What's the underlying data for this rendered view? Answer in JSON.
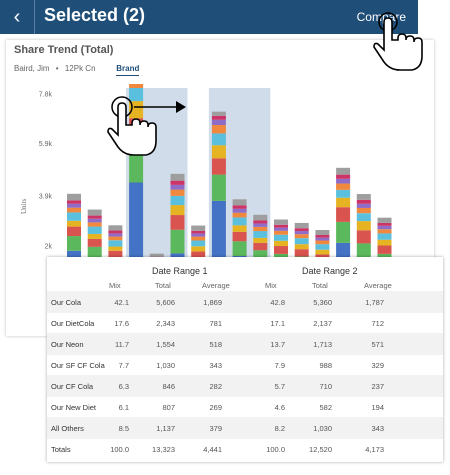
{
  "header": {
    "back_icon": "chevron-left-icon",
    "title": "Selected (2)",
    "compare_label": "Compare"
  },
  "card": {
    "title": "Share Trend (Total)",
    "filters": [
      "Baird, Jim",
      "12Pk Cn"
    ],
    "tab": "Brand"
  },
  "chart_data": {
    "type": "bar",
    "stacked": true,
    "ylabel": "Units",
    "yticks": [
      "2k",
      "3.9k",
      "5.9k",
      "7.8k"
    ],
    "ylim": [
      0,
      8000
    ],
    "highlighted_ranges": [
      "Date Range 1",
      "Date Range 2"
    ],
    "colors": [
      "#4472c4",
      "#5cb85c",
      "#d9534f",
      "#e6b422",
      "#5bc0de",
      "#f0883e",
      "#8e6cc7",
      "#cc3366",
      "#9e9e9e"
    ],
    "bars": [
      [
        1800,
        560,
        360,
        220,
        320,
        180,
        150,
        130,
        250
      ],
      [
        1500,
        450,
        300,
        190,
        280,
        160,
        140,
        120,
        230
      ],
      [
        1150,
        390,
        260,
        160,
        240,
        140,
        120,
        110,
        200
      ],
      [
        4400,
        1500,
        950,
        650,
        500,
        300,
        200,
        150,
        150
      ],
      [
        680,
        240,
        170,
        120,
        140,
        90,
        70,
        60,
        120
      ],
      [
        1700,
        900,
        560,
        380,
        350,
        240,
        180,
        160,
        260
      ],
      [
        1070,
        420,
        280,
        200,
        220,
        150,
        120,
        100,
        200
      ],
      [
        3700,
        1000,
        620,
        500,
        450,
        320,
        200,
        150,
        160
      ],
      [
        1600,
        560,
        360,
        250,
        300,
        180,
        150,
        130,
        230
      ],
      [
        1400,
        420,
        280,
        190,
        260,
        160,
        130,
        120,
        210
      ],
      [
        1200,
        480,
        300,
        200,
        230,
        150,
        120,
        110,
        200
      ],
      [
        1150,
        430,
        280,
        190,
        230,
        150,
        120,
        110,
        200
      ],
      [
        1000,
        400,
        260,
        180,
        210,
        140,
        110,
        100,
        190
      ],
      [
        2100,
        800,
        560,
        360,
        300,
        240,
        180,
        160,
        260
      ],
      [
        1280,
        800,
        500,
        350,
        300,
        200,
        160,
        150,
        220
      ],
      [
        1180,
        500,
        320,
        220,
        240,
        160,
        130,
        110,
        200
      ]
    ]
  },
  "table": {
    "range1": "Date Range 1",
    "range2": "Date Range 2",
    "columns": [
      "Mix",
      "Total",
      "Average",
      "Mix",
      "Total",
      "Average"
    ],
    "rows": [
      {
        "label": "Our Cola",
        "values": [
          "42.1",
          "5,606",
          "1,869",
          "42.8",
          "5,360",
          "1,787"
        ]
      },
      {
        "label": "Our DietCola",
        "values": [
          "17.6",
          "2,343",
          "781",
          "17.1",
          "2,137",
          "712"
        ]
      },
      {
        "label": "Our Neon",
        "values": [
          "11.7",
          "1,554",
          "518",
          "13.7",
          "1,713",
          "571"
        ]
      },
      {
        "label": "Our SF CF Cola",
        "values": [
          "7.7",
          "1,030",
          "343",
          "7.9",
          "988",
          "329"
        ]
      },
      {
        "label": "Our CF Cola",
        "values": [
          "6.3",
          "846",
          "282",
          "5.7",
          "710",
          "237"
        ]
      },
      {
        "label": "Our New Diet",
        "values": [
          "6.1",
          "807",
          "269",
          "4.6",
          "582",
          "194"
        ]
      },
      {
        "label": "All Others",
        "values": [
          "8.5",
          "1,137",
          "379",
          "8.2",
          "1,030",
          "343"
        ]
      },
      {
        "label": "Totals",
        "values": [
          "100.0",
          "13,323",
          "4,441",
          "100.0",
          "12,520",
          "4,173"
        ]
      }
    ]
  },
  "icons": {
    "drag_hand": "pointer-hand-icon",
    "drag_arrow": "arrow-right-icon",
    "tap_hand": "pointer-hand-icon"
  }
}
